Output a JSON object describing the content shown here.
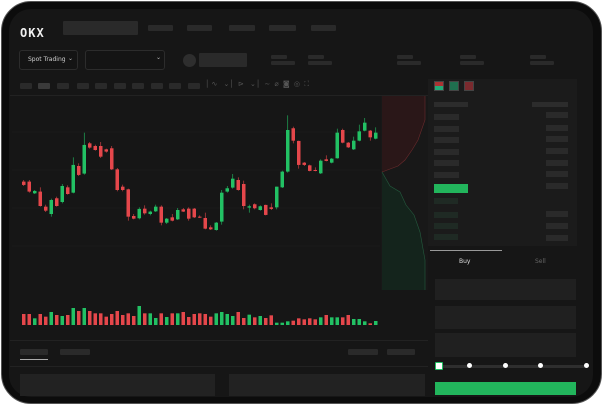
{
  "header": {
    "logo": "OKX",
    "nav_items": [
      "",
      "",
      "",
      "",
      ""
    ]
  },
  "toolbar": {
    "market_selector": "Spot Trading",
    "pair_selector": "",
    "icons": [
      "indicator-icon",
      "chevron-down-icon",
      "chart-type-icon",
      "chevron-down-icon",
      "line-tool-icon",
      "ruler-icon",
      "camera-icon",
      "settings-icon",
      "fullscreen-icon"
    ]
  },
  "orderbook": {
    "view_icons": [
      "book-both-icon",
      "book-bids-icon",
      "book-asks-icon"
    ]
  },
  "trade_panel": {
    "tabs": [
      "Buy",
      "Sell"
    ],
    "active_tab": "Buy",
    "slider_value_percent": 0,
    "slider_stops": [
      0,
      25,
      50,
      75,
      100
    ]
  },
  "colors": {
    "up": "#22c164",
    "down": "#e5474b",
    "background": "#161616",
    "buy_button": "#22b55c"
  },
  "chart_data": {
    "type": "candlestick",
    "grid": true,
    "candles": [
      [
        46.3,
        47.5,
        43,
        43.8
      ],
      [
        46.3,
        47.5,
        38,
        38.8
      ],
      [
        37.5,
        40,
        37,
        39.3
      ],
      [
        38.8,
        42,
        27.5,
        28
      ],
      [
        27.5,
        29,
        23.5,
        24.5
      ],
      [
        22,
        33.5,
        20,
        32.5
      ],
      [
        33.8,
        35,
        27.5,
        28
      ],
      [
        31,
        44.5,
        30,
        43
      ],
      [
        42,
        43.5,
        36.5,
        37
      ],
      [
        38,
        64.5,
        37.5,
        58.8
      ],
      [
        58,
        60,
        50.5,
        51.3
      ],
      [
        52.3,
        83,
        51.5,
        73.8
      ],
      [
        75,
        76,
        71,
        71.8
      ],
      [
        73,
        74,
        69.5,
        70
      ],
      [
        73,
        76,
        64,
        65
      ],
      [
        70.5,
        71,
        68,
        68.8
      ],
      [
        71.3,
        73,
        55,
        55.5
      ],
      [
        55.5,
        56.5,
        39,
        40
      ],
      [
        42.5,
        44,
        39,
        40
      ],
      [
        40.5,
        41,
        17,
        20
      ],
      [
        20.5,
        22,
        18,
        18.5
      ],
      [
        18.8,
        27,
        18,
        25.8
      ],
      [
        26,
        28.5,
        21.5,
        22.5
      ],
      [
        22,
        24.5,
        21,
        23.8
      ],
      [
        24,
        29,
        23.5,
        27.5
      ],
      [
        27.5,
        28.5,
        13.5,
        15.5
      ],
      [
        15.5,
        19,
        14.5,
        18.5
      ],
      [
        19.5,
        22,
        16.5,
        17
      ],
      [
        18,
        26.5,
        17.5,
        25
      ],
      [
        25.5,
        26.5,
        23.5,
        23.8
      ],
      [
        26,
        27,
        17,
        18.5
      ],
      [
        26,
        26.5,
        19,
        19.5
      ],
      [
        20,
        21,
        19,
        19.5
      ],
      [
        19,
        23,
        10.5,
        11
      ],
      [
        12,
        13.5,
        10,
        10.5
      ],
      [
        10,
        16,
        9.5,
        15.5
      ],
      [
        16.3,
        40,
        14,
        38
      ],
      [
        38.8,
        43,
        38,
        41.3
      ],
      [
        41.8,
        52,
        41,
        48.5
      ],
      [
        47.5,
        49.5,
        39.5,
        40
      ],
      [
        44.5,
        47,
        25.5,
        28
      ],
      [
        26.8,
        29,
        23,
        27.8
      ],
      [
        29.3,
        30,
        25.5,
        26.3
      ],
      [
        25,
        28.5,
        24.5,
        27.8
      ],
      [
        28.8,
        29,
        21,
        21.3
      ],
      [
        27,
        30,
        25,
        25.8
      ],
      [
        27,
        42.5,
        25.5,
        42.5
      ],
      [
        42,
        54.5,
        41.5,
        53.8
      ],
      [
        53.8,
        96,
        53,
        85
      ],
      [
        86.3,
        87.5,
        75,
        77
      ],
      [
        76.8,
        77,
        56,
        58.8
      ],
      [
        60.5,
        61,
        58,
        58.8
      ],
      [
        58.5,
        59,
        54,
        54.3
      ],
      [
        55,
        57,
        54,
        54.5
      ],
      [
        52.5,
        63,
        52,
        62
      ],
      [
        63,
        66,
        61.5,
        61.8
      ],
      [
        60.5,
        64,
        60,
        63.5
      ],
      [
        63.8,
        86,
        63.5,
        83
      ],
      [
        85,
        86,
        75,
        75.5
      ],
      [
        75.5,
        76,
        71.5,
        72
      ],
      [
        70.5,
        80,
        70,
        77
      ],
      [
        77,
        89,
        76.5,
        84
      ],
      [
        84.5,
        94,
        84,
        90.5
      ],
      [
        84.5,
        85,
        77,
        79.5
      ],
      [
        78.5,
        87,
        78,
        83
      ]
    ],
    "volume": [
      33,
      33,
      20,
      33,
      25,
      39,
      30,
      27,
      30,
      51,
      42,
      51,
      42,
      35,
      35,
      25,
      33,
      42,
      30,
      35,
      27,
      57,
      35,
      35,
      21,
      35,
      24,
      35,
      35,
      39,
      24,
      33,
      35,
      33,
      25,
      35,
      39,
      33,
      27,
      39,
      21,
      31,
      23,
      27,
      21,
      29,
      7,
      7,
      11,
      13,
      20,
      17,
      20,
      17,
      23,
      30,
      23,
      23,
      23,
      30,
      18,
      18,
      11,
      5,
      12
    ]
  }
}
